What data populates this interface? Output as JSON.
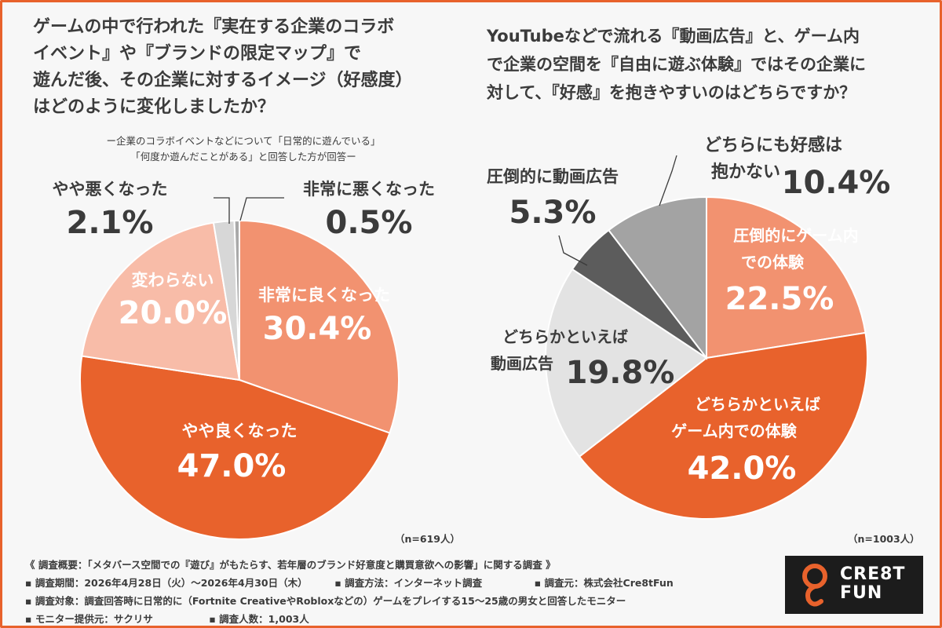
{
  "left_question": {
    "lines": [
      "ゲームの中で行われた『実在する企業のコラボ",
      "イベント』や『ブランドの限定マップ』で",
      "遊んだ後、その企業に対するイメージ（好感度）",
      "はどのように変化しましたか？"
    ]
  },
  "left_subtitle": {
    "lines": [
      "ー企業のコラボイベントなどについて「日常的に遊んでいる」",
      "「何度か遊んだことがある」と回答した方が回答ー"
    ]
  },
  "right_question": {
    "lines": [
      "YouTubeなどで流れる『動画広告』と、ゲーム内",
      "で企業の空間を『自由に遊ぶ体験』ではその企業に",
      "対して、『好感』を抱きやすいのはどちらですか？"
    ]
  },
  "chart_data": [
    {
      "type": "pie",
      "n_label": "（n=619人）",
      "slices": [
        {
          "label": "非常に良くなった",
          "value": 30.4,
          "value_label": "30.4%",
          "color": "#f29270"
        },
        {
          "label": "やや良くなった",
          "value": 47.0,
          "value_label": "47.0%",
          "color": "#e8622c"
        },
        {
          "label": "変わらない",
          "value": 20.0,
          "value_label": "20.0%",
          "color": "#f8bca8"
        },
        {
          "label": "やや悪くなった",
          "value": 2.1,
          "value_label": "2.1%",
          "color": "#d7d7d7"
        },
        {
          "label": "非常に悪くなった",
          "value": 0.5,
          "value_label": "0.5%",
          "color": "#a9a9a9"
        }
      ]
    },
    {
      "type": "pie",
      "n_label": "（n=1003人）",
      "slices": [
        {
          "label": "圧倒的にゲーム内での体験",
          "label_lines": [
            "圧倒的にゲーム内",
            "での体験"
          ],
          "value": 22.5,
          "value_label": "22.5%",
          "color": "#f29270"
        },
        {
          "label": "どちらかといえばゲーム内での体験",
          "label_lines": [
            "どちらかといえば",
            "ゲーム内での体験"
          ],
          "value": 42.0,
          "value_label": "42.0%",
          "color": "#e8622c"
        },
        {
          "label": "どちらかといえば動画広告",
          "label_lines": [
            "どちらかといえば",
            "動画広告"
          ],
          "value": 19.8,
          "value_label": "19.8%",
          "color": "#e3e3e3"
        },
        {
          "label": "圧倒的に動画広告",
          "value": 5.3,
          "value_label": "5.3%",
          "color": "#5c5c5c"
        },
        {
          "label": "どちらにも好感は抱かない",
          "label_lines": [
            "どちらにも好感は",
            "抱かない"
          ],
          "value": 10.4,
          "value_label": "10.4%",
          "color": "#a3a3a3"
        }
      ]
    }
  ],
  "footer": {
    "overview": "《 調査概要：「メタバース空間での『遊び』がもたらす、若年層のブランド好意度と購買意欲への影響」に関する調査 》",
    "period": "▪ 調査期間：2026年4月28日（火）〜2026年4月30日（木）",
    "method": "▪ 調査方法：インターネット調査",
    "source": "▪ 調査元：株式会社Cre8tFun",
    "target": "▪ 調査対象：調査回答時に日常的に（Fortnite CreativeやRobloxなどの）ゲームをプレイする15〜25歳の男女と回答したモニター",
    "provider": "▪ モニター提供元：サクリサ",
    "count": "▪ 調査人数：1,003人"
  },
  "logo": {
    "lines": [
      "CRE8T",
      "FUN"
    ],
    "icon": "cre8tfun-logo-icon",
    "accent": "#e8622c"
  }
}
